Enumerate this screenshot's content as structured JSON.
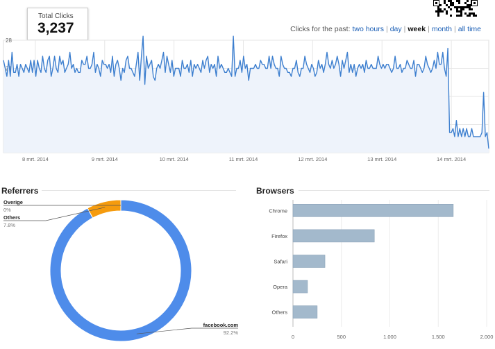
{
  "total_clicks": {
    "label": "Total Clicks",
    "value": "3,237"
  },
  "period": {
    "prefix": "Clicks for the past:",
    "options": [
      {
        "label": "two hours",
        "active": false
      },
      {
        "label": "day",
        "active": false
      },
      {
        "label": "week",
        "active": true
      },
      {
        "label": "month",
        "active": false
      },
      {
        "label": "all time",
        "active": false
      }
    ]
  },
  "qr_icon": "qr-code-icon",
  "colors": {
    "line": "#3d7fcf",
    "fill": "#eef3fb",
    "donut_blue": "#4e8cea",
    "donut_orange": "#f59b0e",
    "bar": "#a3b9cc"
  },
  "chart_data": [
    {
      "type": "line",
      "title": "",
      "ylabel": "",
      "y_ticks": [
        7,
        14,
        21,
        28
      ],
      "ylim": [
        0,
        28
      ],
      "x_ticks": [
        "8 mrt. 2014",
        "9 mrt. 2014",
        "10 mrt. 2014",
        "11 mrt. 2014",
        "12 mrt. 2014",
        "13 mrt. 2014",
        "14 mrt. 2014"
      ],
      "grid": true,
      "values": [
        23,
        21,
        19,
        23,
        19,
        25,
        20,
        20,
        22,
        19,
        22,
        21,
        20,
        22,
        21,
        20,
        23,
        20,
        23,
        19,
        23,
        21,
        20,
        24,
        21,
        20,
        23,
        24,
        19,
        21,
        24,
        21,
        20,
        24,
        22,
        23,
        20,
        21,
        22,
        25,
        21,
        22,
        20,
        21,
        20,
        20,
        23,
        22,
        22,
        24,
        21,
        21,
        22,
        25,
        20,
        22,
        21,
        19,
        23,
        22,
        22,
        21,
        22,
        20,
        24,
        19,
        22,
        23,
        21,
        18,
        21,
        20,
        23,
        24,
        21,
        21,
        20,
        19,
        22,
        25,
        18,
        24,
        29,
        17,
        24,
        21,
        22,
        23,
        19,
        18,
        21,
        22,
        21,
        23,
        25,
        20,
        24,
        22,
        20,
        23,
        19,
        21,
        21,
        21,
        19,
        23,
        21,
        21,
        22,
        20,
        23,
        19,
        22,
        21,
        22,
        21,
        20,
        23,
        21,
        23,
        24,
        20,
        22,
        21,
        22,
        19,
        24,
        21,
        22,
        21,
        20,
        20,
        21,
        20,
        19,
        29,
        19,
        21,
        21,
        23,
        20,
        24,
        21,
        22,
        18,
        21,
        21,
        21,
        22,
        21,
        21,
        23,
        22,
        22,
        21,
        21,
        24,
        21,
        24,
        22,
        21,
        21,
        19,
        24,
        22,
        21,
        21,
        20,
        20,
        19,
        21,
        21,
        23,
        20,
        19,
        21,
        21,
        24,
        22,
        21,
        20,
        22,
        21,
        19,
        20,
        23,
        21,
        22,
        20,
        22,
        25,
        22,
        21,
        23,
        21,
        22,
        24,
        22,
        19,
        23,
        21,
        23,
        25,
        20,
        22,
        20,
        22,
        19,
        21,
        22,
        21,
        22,
        20,
        23,
        21,
        21,
        22,
        21,
        21,
        21,
        24,
        22,
        21,
        22,
        21,
        22,
        22,
        21,
        20,
        21,
        24,
        21,
        21,
        22,
        20,
        21,
        21,
        23,
        22,
        21,
        21,
        23,
        19,
        22,
        22,
        21,
        20,
        21,
        24,
        22,
        21,
        20,
        21,
        23,
        21,
        25,
        22,
        22,
        25,
        21,
        19,
        26,
        5,
        5,
        6,
        4,
        8,
        4,
        6,
        4,
        6,
        4,
        6,
        4,
        4,
        6,
        4,
        4,
        4,
        4,
        4,
        5,
        15,
        4,
        5,
        1
      ]
    },
    {
      "type": "pie",
      "title": "Referrers",
      "labels": [
        "Overige",
        "Others",
        "facebook.com"
      ],
      "values": [
        0,
        7.8,
        92.2
      ],
      "display": [
        "0%",
        "7.8%",
        "92.2%"
      ]
    },
    {
      "type": "bar",
      "title": "Browsers",
      "categories": [
        "Chrome",
        "Firefox",
        "Safari",
        "Opera",
        "Others"
      ],
      "values": [
        1655,
        840,
        330,
        150,
        250
      ],
      "x_ticks": [
        "0",
        "500",
        "1.000",
        "1.500",
        "2.000"
      ],
      "xlim": [
        0,
        2000
      ]
    }
  ]
}
